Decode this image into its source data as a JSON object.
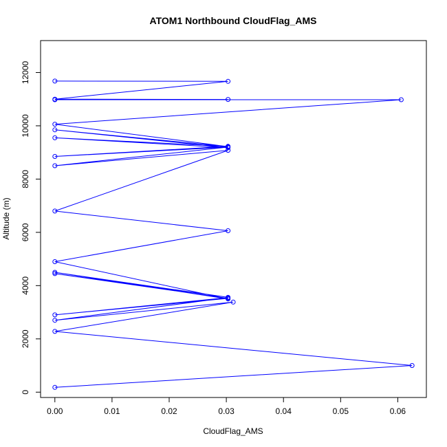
{
  "chart_data": {
    "type": "scatter",
    "title": "ATOM1 Northbound CloudFlag_AMS",
    "xlabel": "CloudFlag_AMS",
    "ylabel": "Altitude (m)",
    "xlim": [
      -0.0025,
      0.065
    ],
    "ylim": [
      -200,
      13200
    ],
    "x_ticks": [
      0.0,
      0.01,
      0.02,
      0.03,
      0.04,
      0.05,
      0.06
    ],
    "x_tick_labels": [
      "0.00",
      "0.01",
      "0.02",
      "0.03",
      "0.04",
      "0.05",
      "0.06"
    ],
    "y_ticks": [
      0,
      2000,
      4000,
      6000,
      8000,
      10000,
      12000
    ],
    "y_tick_labels": [
      "0",
      "2000",
      "4000",
      "6000",
      "8000",
      "10000",
      "12000"
    ],
    "grid": false,
    "color": "#0000ff",
    "series": [
      {
        "x": [
          0,
          0.0625,
          0,
          0.0312,
          0,
          0.0303,
          0,
          0.0303,
          0,
          0.0303,
          0,
          0.0303,
          0,
          0.0303,
          0,
          0.0303,
          0,
          0.0303,
          0,
          0.0303,
          0,
          0.0303,
          0,
          0.0303,
          0,
          0.0606,
          0,
          0.0303,
          0,
          0.0303,
          0
        ],
        "y": [
          180,
          1000,
          2280,
          3380,
          2700,
          3550,
          2900,
          3520,
          4450,
          3560,
          4500,
          3500,
          4900,
          6060,
          6800,
          9080,
          8500,
          9200,
          8850,
          9230,
          9550,
          9180,
          9850,
          9220,
          10060,
          10980,
          10980,
          10990,
          11000,
          11670,
          11680
        ]
      }
    ]
  }
}
